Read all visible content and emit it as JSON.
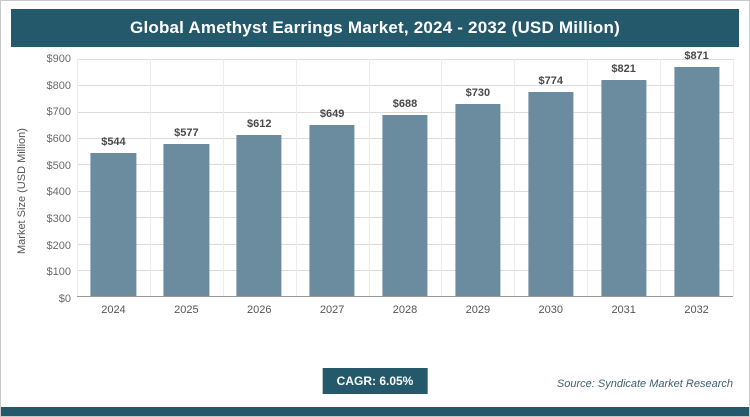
{
  "title": "Global Amethyst Earrings Market, 2024 - 2032 (USD Million)",
  "ylabel": "Market Size (USD Million)",
  "footer": {
    "cagr": "CAGR: 6.05%",
    "source": "Source: Syndicate Market Research"
  },
  "colors": {
    "accent": "#24586B",
    "bar": "#6B8C9E",
    "grid": "#dcdcdc",
    "axis": "#9a9a9a",
    "tick_text": "#6b6b6b"
  },
  "chart_data": {
    "type": "bar",
    "title": "Global Amethyst Earrings Market, 2024 - 2032 (USD Million)",
    "categories": [
      "2024",
      "2025",
      "2026",
      "2027",
      "2028",
      "2029",
      "2030",
      "2031",
      "2032"
    ],
    "values": [
      544,
      577,
      612,
      649,
      688,
      730,
      774,
      821,
      871
    ],
    "value_labels": [
      "$544",
      "$577",
      "$612",
      "$649",
      "$688",
      "$730",
      "$774",
      "$821",
      "$871"
    ],
    "xlabel": "",
    "ylabel": "Market Size (USD Million)",
    "ylim": [
      0,
      900
    ],
    "ytick_step": 100,
    "ytick_labels": [
      "$0",
      "$100",
      "$200",
      "$300",
      "$400",
      "$500",
      "$600",
      "$700",
      "$800",
      "$900"
    ],
    "grid": true,
    "legend": false,
    "cagr_percent": "6.05%"
  }
}
